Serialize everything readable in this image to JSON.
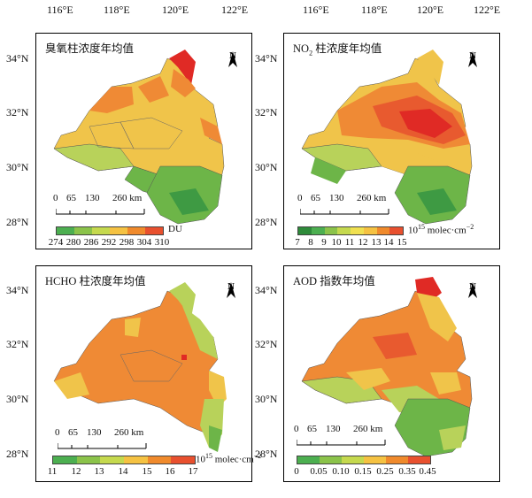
{
  "axes": {
    "lon_labels": [
      "116°E",
      "118°E",
      "120°E",
      "122°E"
    ],
    "lat_labels": [
      "34°N",
      "32°N",
      "30°N",
      "28°N"
    ]
  },
  "panels": [
    {
      "title": "臭氧柱浓度年均值",
      "north": "N",
      "scale_labels": [
        "0",
        "65",
        "130",
        "260 km"
      ],
      "legend_values": [
        "274",
        "280",
        "286",
        "292",
        "298",
        "304",
        "310"
      ],
      "legend_unit": "DU",
      "legend_colors": [
        "#4caf50",
        "#8bc34a",
        "#c5d94e",
        "#f5c242",
        "#f08a2c",
        "#e8502e"
      ]
    },
    {
      "title_main": "NO",
      "title_sub": "2",
      "title_rest": " 柱浓度年均值",
      "north": "N",
      "scale_labels": [
        "0",
        "65",
        "130",
        "260 km"
      ],
      "legend_values": [
        "7",
        "8",
        "9",
        "10",
        "11",
        "12",
        "13",
        "14",
        "15"
      ],
      "legend_unit_base": "10",
      "legend_unit_sup": "15",
      "legend_unit_rest": " molec·cm",
      "legend_unit_sup2": "−2",
      "legend_colors": [
        "#2e8b3a",
        "#4caf50",
        "#8bc34a",
        "#c5d94e",
        "#f0e050",
        "#f5c242",
        "#f08a2c",
        "#e8502e"
      ]
    },
    {
      "title": "HCHO 柱浓度年均值",
      "north": "N",
      "scale_labels": [
        "0",
        "65",
        "130",
        "260 km"
      ],
      "legend_values": [
        "11",
        "12",
        "13",
        "14",
        "15",
        "16",
        "17"
      ],
      "legend_unit_base": "10",
      "legend_unit_sup": "15",
      "legend_unit_rest": " molec·cm",
      "legend_unit_sup2": "−2",
      "legend_colors": [
        "#4caf50",
        "#8bc34a",
        "#c5d94e",
        "#f5c242",
        "#f08a2c",
        "#e8502e"
      ]
    },
    {
      "title": "AOD 指数年均值",
      "north": "N",
      "scale_labels": [
        "0",
        "65",
        "130",
        "260 km"
      ],
      "legend_values": [
        "0",
        "0.05",
        "0.10",
        "0.15",
        "0.25",
        "0.35",
        "0.45"
      ],
      "legend_colors": [
        "#4caf50",
        "#8bc34a",
        "#c5d94e",
        "#f5c242",
        "#f08a2c",
        "#e8502e"
      ]
    }
  ],
  "map_colors": {
    "green_dark": "#3e9a43",
    "green": "#6db548",
    "yellow_green": "#b8d25a",
    "yellow": "#f0c44a",
    "orange": "#ef8a35",
    "red_orange": "#e85a2f",
    "red": "#e02a25"
  }
}
